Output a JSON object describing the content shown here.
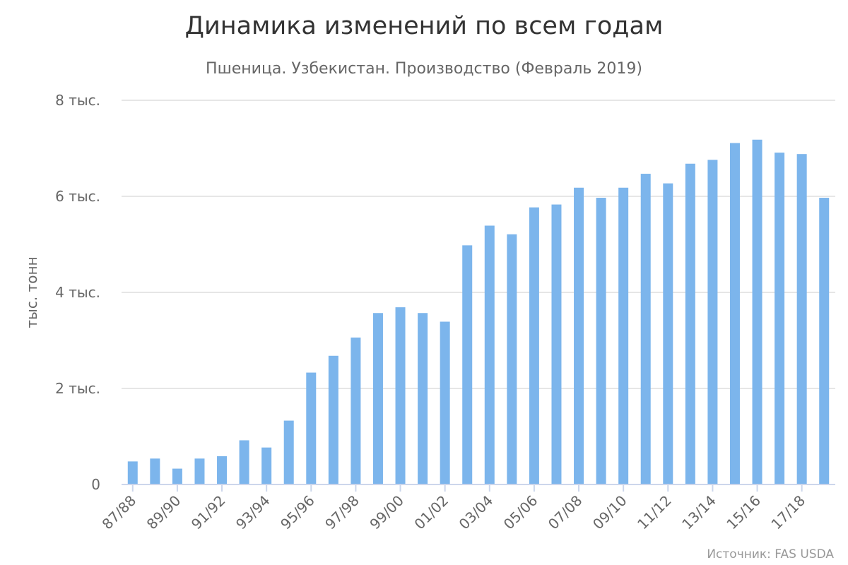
{
  "chart_data": {
    "type": "bar",
    "title": "Динамика изменений по всем годам",
    "subtitle": "Пшеница. Узбекистан. Производство (Февраль 2019)",
    "ylabel": "тыс. тонн",
    "xlabel": "",
    "ylim": [
      0,
      8000
    ],
    "y_ticks": [
      {
        "value": 0,
        "label": "0"
      },
      {
        "value": 2000,
        "label": "2 тыс."
      },
      {
        "value": 4000,
        "label": "4 тыс."
      },
      {
        "value": 6000,
        "label": "6 тыс."
      },
      {
        "value": 8000,
        "label": "8 тыс."
      }
    ],
    "grid": true,
    "legend": "none",
    "bar_color": "#7cb5ec",
    "categories": [
      "87/88",
      "88/89",
      "89/90",
      "90/91",
      "91/92",
      "92/93",
      "93/94",
      "94/95",
      "95/96",
      "96/97",
      "97/98",
      "98/99",
      "99/00",
      "00/01",
      "01/02",
      "02/03",
      "03/04",
      "04/05",
      "05/06",
      "06/07",
      "07/08",
      "08/09",
      "09/10",
      "10/11",
      "11/12",
      "12/13",
      "13/14",
      "14/15",
      "15/16",
      "16/17",
      "17/18",
      "18/19"
    ],
    "x_tick_labels": [
      "87/88",
      "89/90",
      "91/92",
      "93/94",
      "95/96",
      "97/98",
      "99/00",
      "01/02",
      "03/04",
      "05/06",
      "07/08",
      "09/10",
      "11/12",
      "13/14",
      "15/16",
      "17/18"
    ],
    "values": [
      480,
      540,
      330,
      540,
      590,
      920,
      770,
      1330,
      2330,
      2680,
      3060,
      3570,
      3690,
      3570,
      3390,
      4980,
      5390,
      5210,
      5770,
      5830,
      6180,
      5970,
      6180,
      6470,
      6270,
      6680,
      6760,
      7110,
      7180,
      6910,
      6880,
      5970
    ]
  },
  "credits": "Источник: FAS USDA"
}
